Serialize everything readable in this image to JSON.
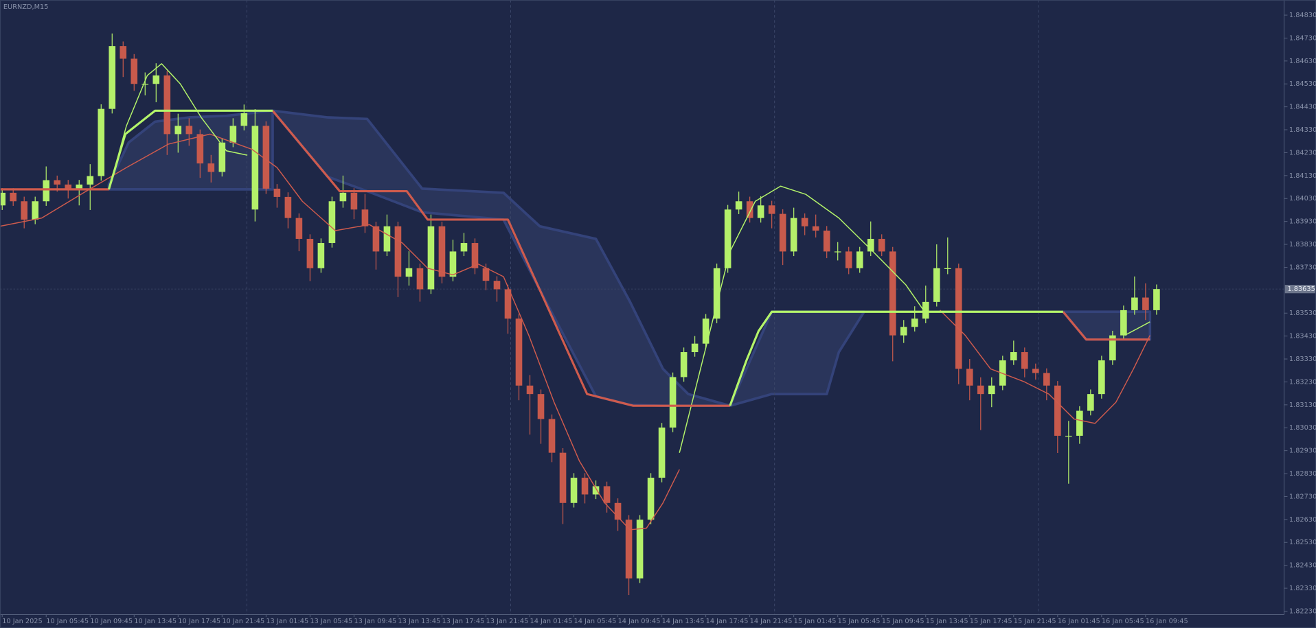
{
  "chart_data": {
    "type": "candlestick",
    "title": "EURNZD,M15",
    "bull_color": "#b4f06a",
    "bear_color": "#c85a4c",
    "xlim": [
      -0.2,
      116.6
    ],
    "ylim": [
      1.82215,
      1.84896
    ],
    "xticks": [
      {
        "value": 0,
        "label": "10 Jan 2025"
      },
      {
        "value": 4,
        "label": "10 Jan 05:45"
      },
      {
        "value": 8,
        "label": "10 Jan 09:45"
      },
      {
        "value": 12,
        "label": "10 Jan 13:45"
      },
      {
        "value": 16,
        "label": "10 Jan 17:45"
      },
      {
        "value": 20,
        "label": "10 Jan 21:45"
      },
      {
        "value": 24,
        "label": "13 Jan 01:45"
      },
      {
        "value": 28,
        "label": "13 Jan 05:45"
      },
      {
        "value": 32,
        "label": "13 Jan 09:45"
      },
      {
        "value": 36,
        "label": "13 Jan 13:45"
      },
      {
        "value": 40,
        "label": "13 Jan 17:45"
      },
      {
        "value": 44,
        "label": "13 Jan 21:45"
      },
      {
        "value": 48,
        "label": "14 Jan 01:45"
      },
      {
        "value": 52,
        "label": "14 Jan 05:45"
      },
      {
        "value": 56,
        "label": "14 Jan 09:45"
      },
      {
        "value": 60,
        "label": "14 Jan 13:45"
      },
      {
        "value": 64,
        "label": "14 Jan 17:45"
      },
      {
        "value": 68,
        "label": "14 Jan 21:45"
      },
      {
        "value": 72,
        "label": "15 Jan 01:45"
      },
      {
        "value": 76,
        "label": "15 Jan 05:45"
      },
      {
        "value": 80,
        "label": "15 Jan 09:45"
      },
      {
        "value": 84,
        "label": "15 Jan 13:45"
      },
      {
        "value": 88,
        "label": "15 Jan 17:45"
      },
      {
        "value": 92,
        "label": "15 Jan 21:45"
      },
      {
        "value": 96,
        "label": "16 Jan 01:45"
      },
      {
        "value": 100,
        "label": "16 Jan 05:45"
      },
      {
        "value": 104,
        "label": "16 Jan 09:45"
      }
    ],
    "yticks": [
      {
        "value": 1.8223,
        "label": "1.82230"
      },
      {
        "value": 1.8233,
        "label": "1.82330"
      },
      {
        "value": 1.8243,
        "label": "1.82430"
      },
      {
        "value": 1.8253,
        "label": "1.82530"
      },
      {
        "value": 1.8263,
        "label": "1.82630"
      },
      {
        "value": 1.8273,
        "label": "1.82730"
      },
      {
        "value": 1.8283,
        "label": "1.82830"
      },
      {
        "value": 1.8293,
        "label": "1.82930"
      },
      {
        "value": 1.8303,
        "label": "1.83030"
      },
      {
        "value": 1.8313,
        "label": "1.83130"
      },
      {
        "value": 1.8323,
        "label": "1.83230"
      },
      {
        "value": 1.8333,
        "label": "1.83330"
      },
      {
        "value": 1.8343,
        "label": "1.83430"
      },
      {
        "value": 1.8353,
        "label": "1.83530"
      },
      {
        "value": 1.8373,
        "label": "1.83730"
      },
      {
        "value": 1.8383,
        "label": "1.83830"
      },
      {
        "value": 1.8393,
        "label": "1.83930"
      },
      {
        "value": 1.8403,
        "label": "1.84030"
      },
      {
        "value": 1.8413,
        "label": "1.84130"
      },
      {
        "value": 1.8423,
        "label": "1.84230"
      },
      {
        "value": 1.8433,
        "label": "1.84330"
      },
      {
        "value": 1.8443,
        "label": "1.84430"
      },
      {
        "value": 1.8453,
        "label": "1.84530"
      },
      {
        "value": 1.8463,
        "label": "1.84630"
      },
      {
        "value": 1.8473,
        "label": "1.84730"
      },
      {
        "value": 1.8483,
        "label": "1.84830"
      }
    ],
    "separators": [
      22.25,
      46.25,
      70.25,
      94.25
    ],
    "last_price": {
      "value": 1.83635,
      "label": "1.83635"
    },
    "open": [
      1.84,
      1.84055,
      1.84018,
      1.83938,
      1.84018,
      1.8411,
      1.84091,
      1.84073,
      1.84091,
      1.84128,
      1.84421,
      1.84695,
      1.8464,
      1.8453,
      1.8453,
      1.84567,
      1.84311,
      1.84347,
      1.84311,
      1.84183,
      1.84146,
      1.84274,
      1.84347,
      1.83982,
      1.84347,
      1.84073,
      1.84037,
      1.83945,
      1.83854,
      1.83726,
      1.83836,
      1.84018,
      1.84055,
      1.83982,
      1.83909,
      1.83799,
      1.83909,
      1.83689,
      1.83726,
      1.83634,
      1.83909,
      1.83689,
      1.83799,
      1.83836,
      1.83726,
      1.83671,
      1.83634,
      1.83506,
      1.83214,
      1.83177,
      1.83068,
      1.82921,
      1.82702,
      1.82812,
      1.82739,
      1.82775,
      1.82702,
      1.82629,
      1.82373,
      1.82629,
      1.82812,
      1.83031,
      1.83251,
      1.8336,
      1.83397,
      1.83506,
      1.83726,
      1.83982,
      1.84018,
      1.83945,
      1.84,
      1.83963,
      1.83799,
      1.83945,
      1.83909,
      1.8389,
      1.83799,
      1.83799,
      1.83726,
      1.83799,
      1.83854,
      1.83799,
      1.83433,
      1.8347,
      1.83506,
      1.83579,
      1.83726,
      1.83726,
      1.83287,
      1.83214,
      1.83177,
      1.83214,
      1.83324,
      1.8336,
      1.83287,
      1.83269,
      1.83214,
      1.82995,
      1.82995,
      1.83104,
      1.83177,
      1.83324,
      1.83433,
      1.83543,
      1.83598,
      1.83543
    ],
    "high": [
      1.84075,
      1.84075,
      1.84038,
      1.84038,
      1.8417,
      1.8413,
      1.84111,
      1.84111,
      1.8418,
      1.84441,
      1.8475,
      1.84715,
      1.8466,
      1.8458,
      1.8462,
      1.84587,
      1.844,
      1.8438,
      1.84331,
      1.8422,
      1.84294,
      1.8438,
      1.8444,
      1.8442,
      1.84367,
      1.84093,
      1.84057,
      1.83965,
      1.83874,
      1.83856,
      1.84038,
      1.8413,
      1.84075,
      1.8405,
      1.83929,
      1.8396,
      1.83929,
      1.838,
      1.83746,
      1.8396,
      1.83929,
      1.8385,
      1.8388,
      1.83856,
      1.83746,
      1.83691,
      1.83654,
      1.83526,
      1.8326,
      1.83197,
      1.83088,
      1.82941,
      1.82832,
      1.82832,
      1.828,
      1.82795,
      1.82722,
      1.82649,
      1.82649,
      1.82832,
      1.83051,
      1.83271,
      1.8338,
      1.8343,
      1.83526,
      1.83746,
      1.84002,
      1.8406,
      1.84038,
      1.8404,
      1.8402,
      1.83983,
      1.8399,
      1.83965,
      1.8396,
      1.8391,
      1.8384,
      1.83819,
      1.83819,
      1.8393,
      1.83874,
      1.83819,
      1.835,
      1.8356,
      1.8365,
      1.8383,
      1.8386,
      1.83746,
      1.8333,
      1.8325,
      1.8325,
      1.83344,
      1.8341,
      1.8338,
      1.8331,
      1.83289,
      1.83234,
      1.8306,
      1.83124,
      1.83197,
      1.83344,
      1.83453,
      1.83563,
      1.8369,
      1.8366,
      1.83655
    ],
    "low": [
      1.8398,
      1.83998,
      1.839,
      1.83918,
      1.83998,
      1.8406,
      1.8403,
      1.84,
      1.8398,
      1.84108,
      1.84401,
      1.8456,
      1.845,
      1.8448,
      1.8445,
      1.8422,
      1.8423,
      1.8426,
      1.8412,
      1.841,
      1.84126,
      1.84254,
      1.84327,
      1.8393,
      1.8405,
      1.8399,
      1.839,
      1.838,
      1.8367,
      1.83706,
      1.83816,
      1.8399,
      1.8394,
      1.8388,
      1.8372,
      1.83779,
      1.836,
      1.8365,
      1.8358,
      1.83614,
      1.8366,
      1.83669,
      1.83779,
      1.837,
      1.8363,
      1.8358,
      1.8344,
      1.8315,
      1.83,
      1.8296,
      1.8288,
      1.8261,
      1.82682,
      1.827,
      1.82719,
      1.8266,
      1.8258,
      1.823,
      1.82353,
      1.82609,
      1.82792,
      1.83011,
      1.83231,
      1.8334,
      1.83377,
      1.83486,
      1.83706,
      1.83962,
      1.83925,
      1.83925,
      1.839,
      1.8374,
      1.83779,
      1.8387,
      1.8386,
      1.8377,
      1.8376,
      1.837,
      1.83706,
      1.83779,
      1.83779,
      1.8332,
      1.834,
      1.8345,
      1.83486,
      1.83559,
      1.837,
      1.8322,
      1.8315,
      1.8302,
      1.8312,
      1.83194,
      1.83304,
      1.8325,
      1.8324,
      1.8315,
      1.8292,
      1.82786,
      1.8296,
      1.83084,
      1.83157,
      1.83304,
      1.83413,
      1.83523,
      1.835,
      1.83523
    ],
    "close": [
      1.84055,
      1.84018,
      1.83938,
      1.84018,
      1.8411,
      1.84091,
      1.84073,
      1.84091,
      1.84128,
      1.84421,
      1.84695,
      1.8464,
      1.8453,
      1.8453,
      1.84567,
      1.84311,
      1.84347,
      1.84311,
      1.84183,
      1.84146,
      1.84274,
      1.84347,
      1.84402,
      1.84347,
      1.84073,
      1.84037,
      1.83945,
      1.83854,
      1.83726,
      1.83836,
      1.84018,
      1.84055,
      1.83982,
      1.83909,
      1.83799,
      1.83909,
      1.83689,
      1.83726,
      1.83634,
      1.83909,
      1.83689,
      1.83799,
      1.83836,
      1.83726,
      1.83671,
      1.83634,
      1.83506,
      1.83214,
      1.83177,
      1.83068,
      1.82921,
      1.82702,
      1.82812,
      1.82739,
      1.82775,
      1.82702,
      1.82629,
      1.82373,
      1.82629,
      1.82812,
      1.83031,
      1.83251,
      1.8336,
      1.83397,
      1.83506,
      1.83726,
      1.83982,
      1.84018,
      1.83945,
      1.84,
      1.83963,
      1.83799,
      1.83945,
      1.83909,
      1.8389,
      1.83799,
      1.83799,
      1.83726,
      1.83799,
      1.83854,
      1.83799,
      1.83433,
      1.8347,
      1.83506,
      1.83579,
      1.83726,
      1.83726,
      1.83287,
      1.83214,
      1.83177,
      1.83214,
      1.83324,
      1.8336,
      1.83287,
      1.83269,
      1.83214,
      1.82995,
      1.82995,
      1.83104,
      1.83177,
      1.83324,
      1.83433,
      1.83543,
      1.83598,
      1.83543,
      1.83635
    ],
    "band": {
      "color": "#2a355b",
      "edge_color": "#34437a",
      "x": [
        9.7,
        11.5,
        13.9,
        17.0,
        20.4,
        24.6,
        null,
        24.6,
        29.6,
        33.2,
        38.2,
        45.6,
        48.9,
        54.0,
        57.1,
        60.1,
        62.4,
        66.2,
        null,
        66.2,
        70.0,
        75.0,
        76.1,
        78.4,
        null,
        96.5,
        98.6,
        104.4
      ],
      "upper": [
        1.84092,
        1.84274,
        1.84365,
        1.84384,
        1.84391,
        1.84413,
        null,
        1.84413,
        1.84384,
        1.84377,
        1.84073,
        1.84055,
        1.83909,
        1.83854,
        1.8358,
        1.83287,
        1.83177,
        1.83126,
        null,
        1.83126,
        1.83536,
        1.83536,
        1.83536,
        1.83536,
        null,
        1.83536,
        1.83536,
        1.83536
      ],
      "lower": [
        1.8407,
        1.8407,
        1.8407,
        1.8407,
        1.8407,
        1.8407,
        null,
        1.84413,
        1.84125,
        1.84062,
        1.8397,
        1.83938,
        1.83632,
        1.83167,
        1.8313,
        1.83126,
        1.83126,
        1.83126,
        null,
        1.83126,
        1.83177,
        1.83177,
        1.8336,
        1.83536,
        null,
        1.83536,
        1.83415,
        1.83415
      ]
    },
    "lines": [
      {
        "style": "thin",
        "color": "#cf5b4d",
        "x": [
          -0.2,
          3.6,
          7.4,
          11.3,
          15.1,
          18.9,
          22.7,
          25.0,
          27.3,
          30.3,
          33.4,
          36.4,
          38.7,
          41.0,
          43.3,
          45.6,
          47.9,
          50.2,
          52.5,
          54.8,
          57.1,
          58.6,
          60.1,
          61.6,
          null,
          85.3,
          87.6,
          89.9,
          92.9,
          95.2,
          97.5,
          99.4,
          101.3,
          102.9,
          104.4
        ],
        "values": [
          1.83909,
          1.83945,
          1.84055,
          1.84165,
          1.84267,
          1.84311,
          1.84245,
          1.84165,
          1.84018,
          1.8389,
          1.83916,
          1.83836,
          1.83726,
          1.83697,
          1.83744,
          1.83689,
          1.83433,
          1.83141,
          1.82885,
          1.82702,
          1.82585,
          1.82592,
          1.82702,
          1.82848,
          null,
          1.83543,
          1.83433,
          1.83287,
          1.83232,
          1.83177,
          1.83068,
          1.83049,
          1.83141,
          1.83287,
          1.83433
        ]
      },
      {
        "style": "thin",
        "color": "#b4f56a",
        "x": [
          9.7,
          11.3,
          13.2,
          14.5,
          16.2,
          18.1,
          20.4,
          22.3,
          null,
          61.6,
          63.9,
          66.2,
          68.5,
          70.8,
          73.1,
          76.1,
          79.2,
          82.2,
          83.8,
          null,
          102.1,
          104.4
        ],
        "values": [
          1.8407,
          1.84347,
          1.84567,
          1.84618,
          1.8453,
          1.84384,
          1.84238,
          1.84219,
          null,
          1.82921,
          1.8336,
          1.83799,
          1.84018,
          1.84084,
          1.84048,
          1.83945,
          1.83799,
          1.83653,
          1.83543,
          null,
          1.83433,
          1.83492
        ]
      },
      {
        "style": "thick",
        "color": "#cf5b4d",
        "x": [
          -0.2,
          9.7,
          null,
          24.6,
          30.7,
          36.8,
          38.7,
          46.0,
          53.2,
          57.4,
          66.2,
          null,
          96.5,
          98.6,
          104.4
        ],
        "values": [
          1.8407,
          1.8407,
          null,
          1.84413,
          1.84062,
          1.84062,
          1.83938,
          1.83938,
          1.83177,
          1.83126,
          1.83126,
          null,
          1.83536,
          1.83415,
          1.83415
        ]
      },
      {
        "style": "thick",
        "color": "#b4f56a",
        "x": [
          9.7,
          11.2,
          13.9,
          24.6,
          null,
          66.2,
          67.7,
          68.8,
          70.0,
          96.5
        ],
        "values": [
          1.8407,
          1.84311,
          1.84413,
          1.84413,
          null,
          1.83126,
          1.83324,
          1.83452,
          1.83536,
          1.83536
        ]
      }
    ]
  }
}
